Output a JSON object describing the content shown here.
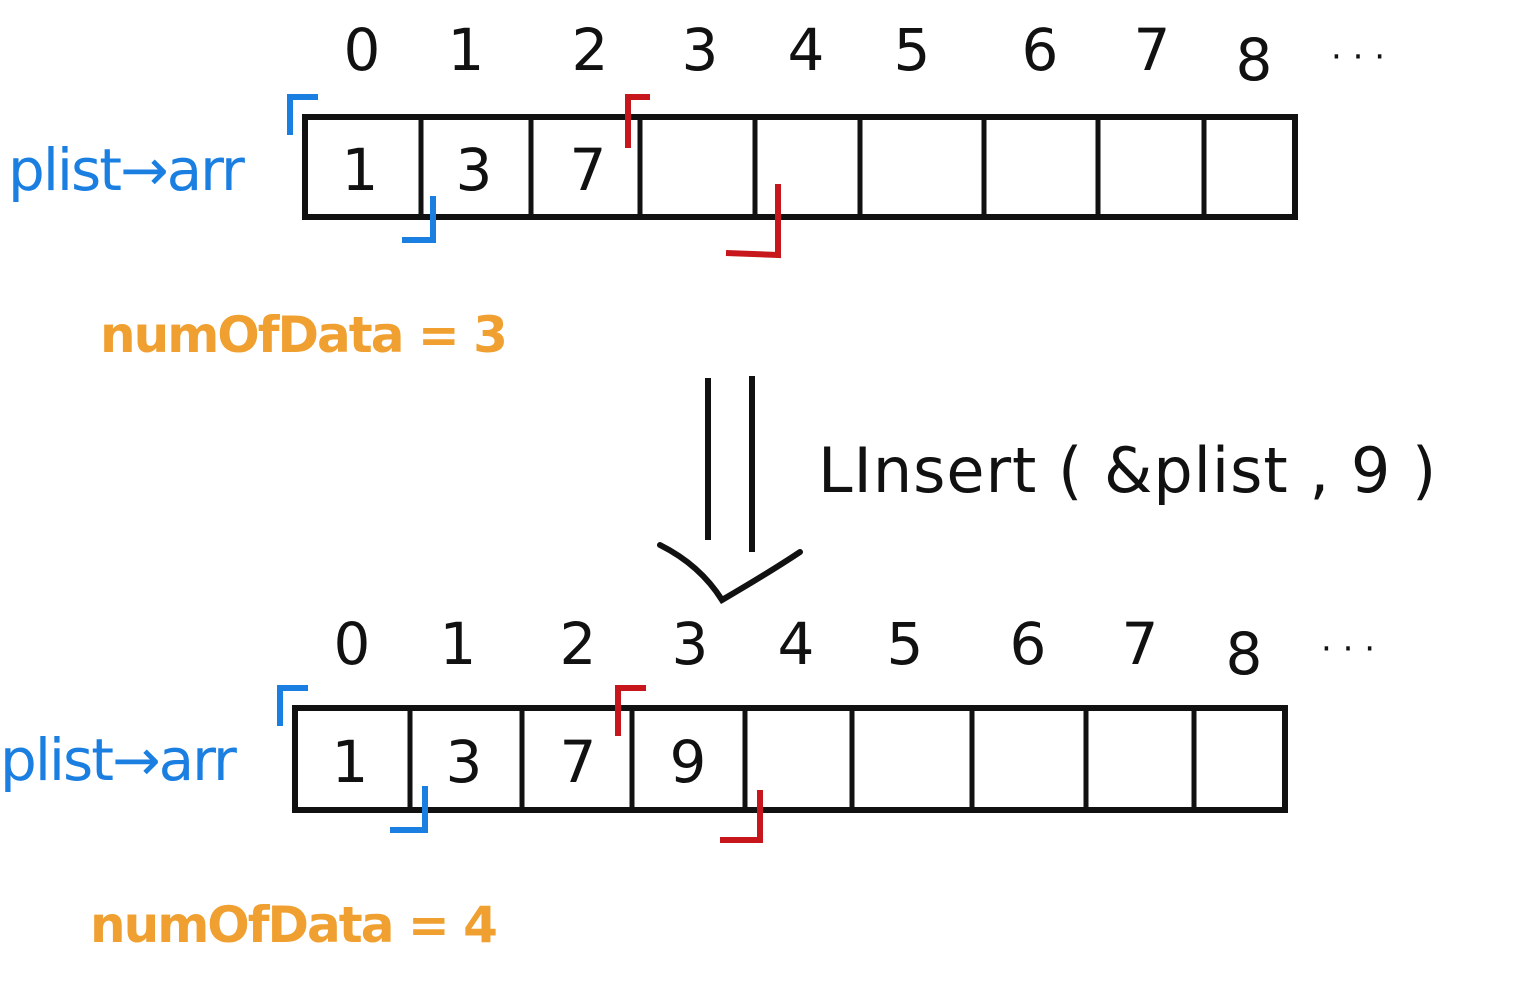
{
  "colors": {
    "ink": "#111111",
    "pointer_blue": "#1a7fe0",
    "bracket_red": "#c8161d",
    "count_orange": "#f0a030"
  },
  "before": {
    "indices": [
      "0",
      "1",
      "2",
      "3",
      "4",
      "5",
      "6",
      "7",
      "8"
    ],
    "ellipsis": "· · ·",
    "pointer_label": "plist→arr",
    "cells": [
      "1",
      "3",
      "7",
      "",
      "",
      "",
      "",
      "",
      ""
    ],
    "count_label": "numOfData = 3"
  },
  "operation": {
    "call": "LInsert ( &plist , 9 )"
  },
  "after": {
    "indices": [
      "0",
      "1",
      "2",
      "3",
      "4",
      "5",
      "6",
      "7",
      "8"
    ],
    "ellipsis": "· · ·",
    "pointer_label": "plist→arr",
    "cells": [
      "1",
      "3",
      "7",
      "9",
      "",
      "",
      "",
      "",
      ""
    ],
    "count_label": "numOfData = 4"
  }
}
